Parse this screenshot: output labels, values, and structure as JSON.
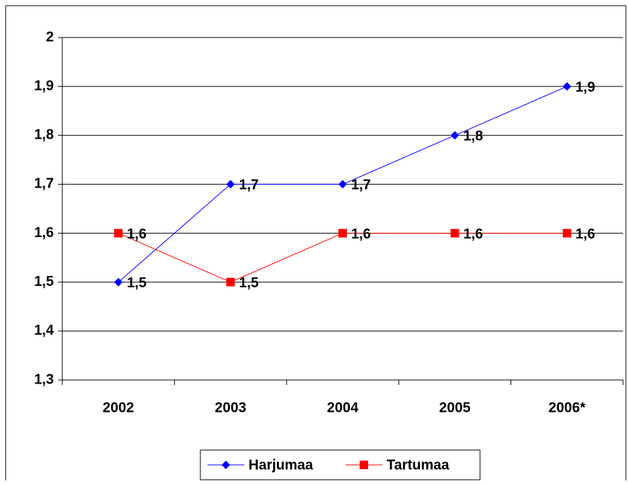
{
  "chart_data": {
    "type": "line",
    "categories": [
      "2002",
      "2003",
      "2004",
      "2005",
      "2006*"
    ],
    "series": [
      {
        "name": "Harjumaa",
        "color": "#0000ff",
        "marker": "diamond",
        "values": [
          1.5,
          1.7,
          1.7,
          1.8,
          1.9
        ],
        "value_labels": [
          "1,5",
          "1,7",
          "1,7",
          "1,8",
          "1,9"
        ]
      },
      {
        "name": "Tartumaa",
        "color": "#ff0000",
        "marker": "square",
        "values": [
          1.6,
          1.5,
          1.6,
          1.6,
          1.6
        ],
        "value_labels": [
          "1,6",
          "1,5",
          "1,6",
          "1,6",
          "1,6"
        ]
      }
    ],
    "ylim": [
      1.3,
      2
    ],
    "yticks": [
      {
        "value": 1.3,
        "label": "1,3"
      },
      {
        "value": 1.4,
        "label": "1,4"
      },
      {
        "value": 1.5,
        "label": "1,5"
      },
      {
        "value": 1.6,
        "label": "1,6"
      },
      {
        "value": 1.7,
        "label": "1,7"
      },
      {
        "value": 1.8,
        "label": "1,8"
      },
      {
        "value": 1.9,
        "label": "1,9"
      },
      2
    ],
    "grid": true,
    "legend": "bottom"
  }
}
